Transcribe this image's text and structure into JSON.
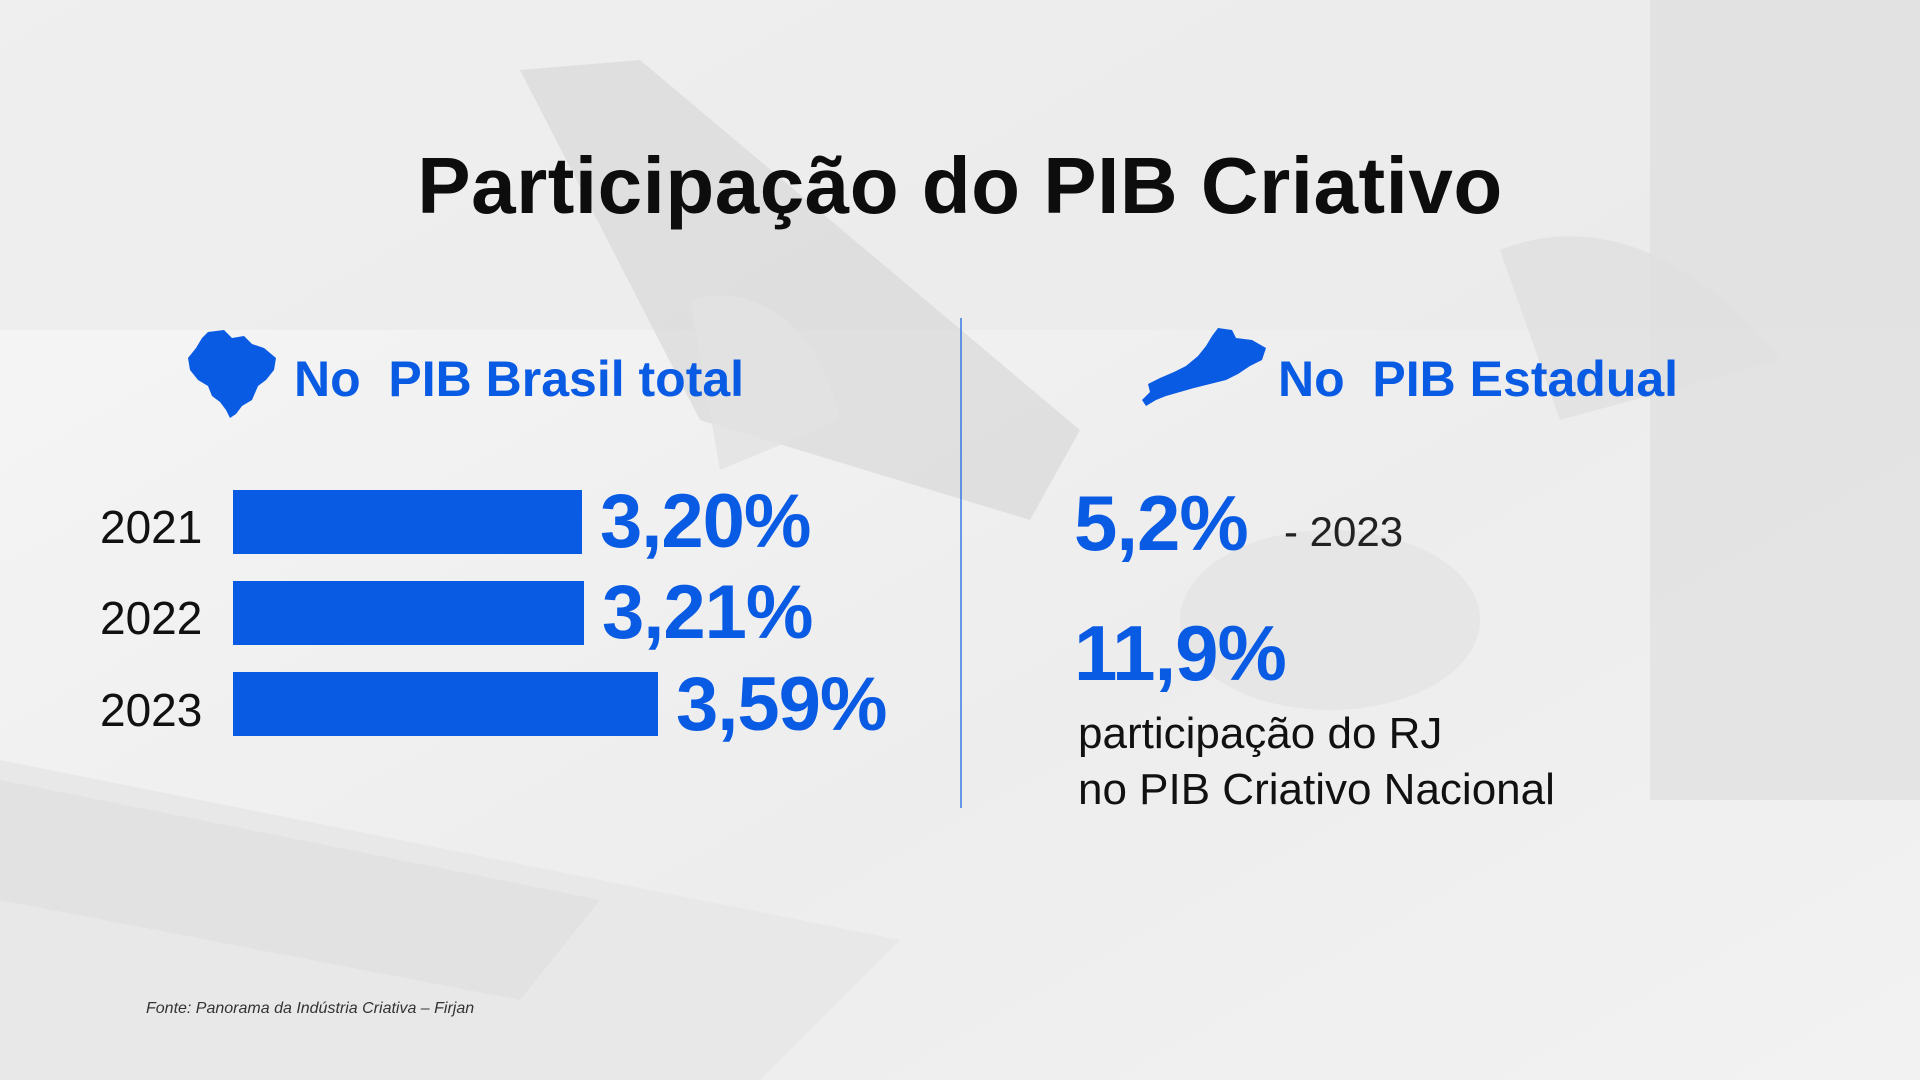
{
  "title": "Participação do PIB Criativo",
  "left": {
    "heading": "No  PIB Brasil total",
    "icon": "brazil-map-icon"
  },
  "right": {
    "heading": "No  PIB Estadual",
    "icon": "rio-de-janeiro-map-icon",
    "stat1_value": "5,2%",
    "stat1_note": "- 2023",
    "stat2_value": "11,9%",
    "stat2_desc_line1": "participação do RJ",
    "stat2_desc_line2": "no PIB Criativo Nacional"
  },
  "chart_data": {
    "type": "bar",
    "orientation": "horizontal",
    "categories": [
      "2021",
      "2022",
      "2023"
    ],
    "values": [
      3.2,
      3.21,
      3.59
    ],
    "value_labels": [
      "3,20%",
      "3,21%",
      "3,59%"
    ],
    "color": "#0a5be3"
  },
  "source": "Fonte: Panorama da Indústria Criativa – Firjan",
  "colors": {
    "accent": "#0a5be3",
    "text": "#111111"
  }
}
